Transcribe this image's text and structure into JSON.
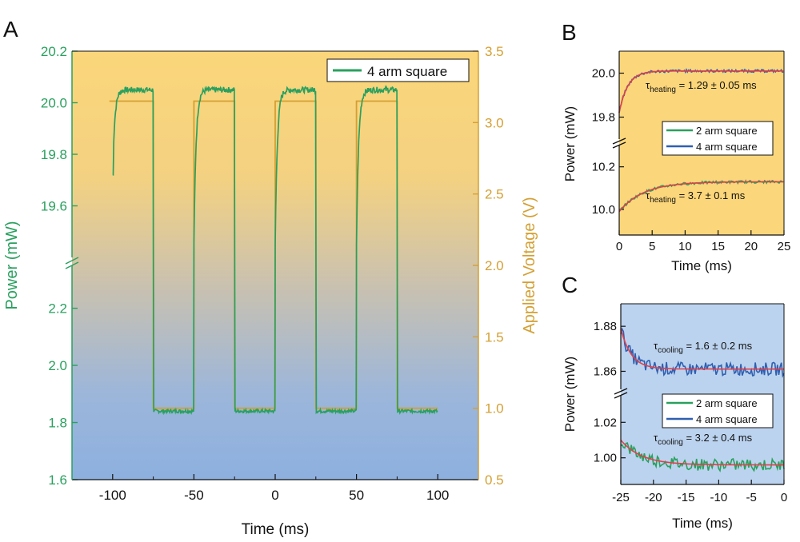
{
  "colors": {
    "green": "#2aa05f",
    "blue": "#2f5fb0",
    "red": "#e0404a",
    "orange": "#d4a033",
    "bg_warm": "#fbd67a",
    "bg_cool": "#8db0df",
    "bg_cool_c": "#bcd3ef"
  },
  "chart_data": [
    {
      "panel_label": "A",
      "type": "line",
      "xlabel": "Time (ms)",
      "ylabel_left": "Power (mW)",
      "ylabel_right": "Applied Voltage (V)",
      "xlim": [
        -125,
        125
      ],
      "x_ticks": [
        "-100",
        "-50",
        "0",
        "50",
        "100"
      ],
      "x_tick_values": [
        -100,
        -50,
        0,
        50,
        100
      ],
      "y_left_upper": {
        "range": [
          19.4,
          20.2
        ],
        "ticks": [
          "19.6",
          "19.8",
          "20.0",
          "20.2"
        ],
        "tick_values": [
          19.6,
          19.8,
          20.0,
          20.2
        ]
      },
      "y_left_lower": {
        "range": [
          1.6,
          2.35
        ],
        "ticks": [
          "1.6",
          "1.8",
          "2.0",
          "2.2"
        ],
        "tick_values": [
          1.6,
          1.8,
          2.0,
          2.2
        ]
      },
      "y_right": {
        "range": [
          0.5,
          3.5
        ],
        "ticks": [
          "0.5",
          "1.0",
          "1.5",
          "2.0",
          "2.5",
          "3.0",
          "3.5"
        ],
        "tick_values": [
          0.5,
          1.0,
          1.5,
          2.0,
          2.5,
          3.0,
          3.5
        ]
      },
      "axis_break": "left",
      "legend": [
        "4 arm square"
      ],
      "legend_position": "top-right",
      "series": [
        {
          "name": "4 arm square",
          "axis": "left",
          "high_level_mW": 20.05,
          "low_level_mW": 1.84,
          "initial_mW": 19.72
        },
        {
          "axis": "right",
          "type": "square-wave",
          "high_V": 3.15,
          "low_V": 1.0,
          "high_intervals": [
            [
              -100,
              -75
            ],
            [
              -50,
              -25
            ],
            [
              0,
              25
            ],
            [
              50,
              75
            ]
          ],
          "low_intervals": [
            [
              -75,
              -50
            ],
            [
              -25,
              0
            ],
            [
              25,
              50
            ],
            [
              75,
              100
            ]
          ]
        }
      ]
    },
    {
      "panel_label": "B",
      "type": "line",
      "xlabel": "Time (ms)",
      "ylabel": "Power (mW)",
      "xlim": [
        0,
        25
      ],
      "x_ticks": [
        "0",
        "5",
        "10",
        "15",
        "20",
        "25"
      ],
      "x_tick_values": [
        0,
        5,
        10,
        15,
        20,
        25
      ],
      "y_upper": {
        "range": [
          19.7,
          20.1
        ],
        "ticks": [
          "19.8",
          "20.0"
        ],
        "tick_values": [
          19.8,
          20.0
        ]
      },
      "y_lower": {
        "range": [
          9.88,
          10.3
        ],
        "ticks": [
          "10.0",
          "10.2"
        ],
        "tick_values": [
          10.0,
          10.2
        ]
      },
      "axis_break": "left",
      "annotations": [
        {
          "symbol": "τ",
          "sub": "heating",
          "text": " = 1.29 ± 0.05 ms"
        },
        {
          "symbol": "τ",
          "sub": "heating",
          "text": " = 3.7 ± 0.1 ms"
        }
      ],
      "legend": [
        "2 arm square",
        "4 arm square"
      ],
      "legend_position": "center-right",
      "series": [
        {
          "name": "4 arm square",
          "start_mW": 19.82,
          "end_mW": 20.01,
          "tau_ms": 1.29
        },
        {
          "name": "2 arm square",
          "start_mW": 9.99,
          "end_mW": 10.13,
          "tau_ms": 3.7
        }
      ]
    },
    {
      "panel_label": "C",
      "type": "line",
      "xlabel": "Time (ms)",
      "ylabel": "Power (mW)",
      "xlim": [
        -25,
        0
      ],
      "x_ticks": [
        "-25",
        "-20",
        "-15",
        "-10",
        "-5",
        "0"
      ],
      "x_tick_values": [
        -25,
        -20,
        -15,
        -10,
        -5,
        0
      ],
      "y_upper": {
        "range": [
          1.852,
          1.89
        ],
        "ticks": [
          "1.86",
          "1.88"
        ],
        "tick_values": [
          1.86,
          1.88
        ]
      },
      "y_lower": {
        "range": [
          0.985,
          1.035
        ],
        "ticks": [
          "1.00",
          "1.02"
        ],
        "tick_values": [
          1.0,
          1.02
        ]
      },
      "axis_break": "left",
      "annotations": [
        {
          "symbol": "τ",
          "sub": "cooling",
          "text": " = 1.6 ± 0.2 ms"
        },
        {
          "symbol": "τ",
          "sub": "cooling",
          "text": " = 3.2 ± 0.4 ms"
        }
      ],
      "legend": [
        "2 arm square",
        "4 arm square"
      ],
      "legend_position": "center-right",
      "series": [
        {
          "name": "4 arm square",
          "start_mW": 1.879,
          "end_mW": 1.861,
          "tau_ms": 1.6
        },
        {
          "name": "2 arm square",
          "start_mW": 1.01,
          "end_mW": 0.996,
          "tau_ms": 3.2
        }
      ]
    }
  ]
}
